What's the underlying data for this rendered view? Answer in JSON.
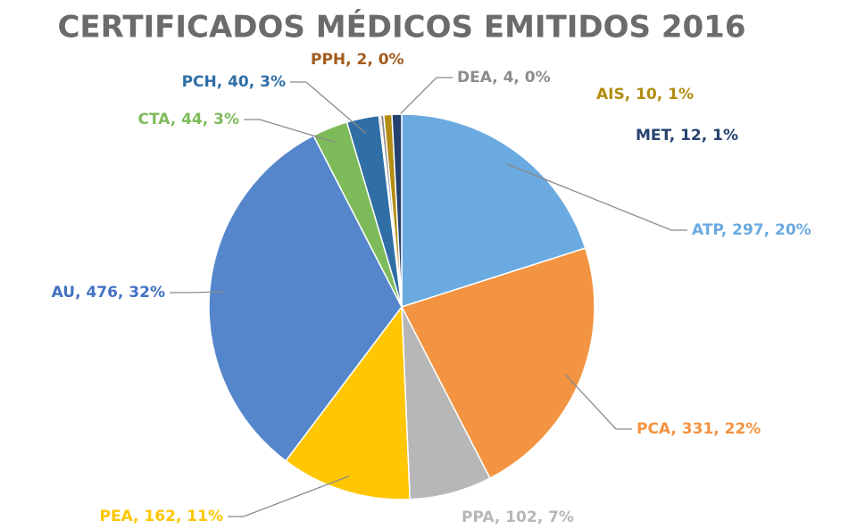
{
  "chart_data": {
    "type": "pie",
    "title": "CERTIFICADOS MÉDICOS EMITIDOS 2016",
    "values": [
      297,
      331,
      102,
      162,
      476,
      44,
      40,
      2,
      4,
      10,
      12
    ],
    "value_labels": [
      "ATP, 297, 20%",
      "PCA, 331, 22%",
      "PPA, 102, 7%",
      "PEA, 162, 11%",
      "AU, 476, 32%",
      "CTA, 44, 3%",
      "PCH, 40, 3%",
      "PPH, 2, 0%",
      "DEA, 4, 0%",
      "AIS, 10, 1%",
      "MET, 12, 1%"
    ],
    "colors": [
      "#6aaae0",
      "#f29441",
      "#b7b7b7",
      "#fec603",
      "#5586cb",
      "#7dbb5a",
      "#2f6fa6",
      "#a35b1c",
      "#8c8c8c",
      "#b28c10",
      "#25426f"
    ]
  }
}
